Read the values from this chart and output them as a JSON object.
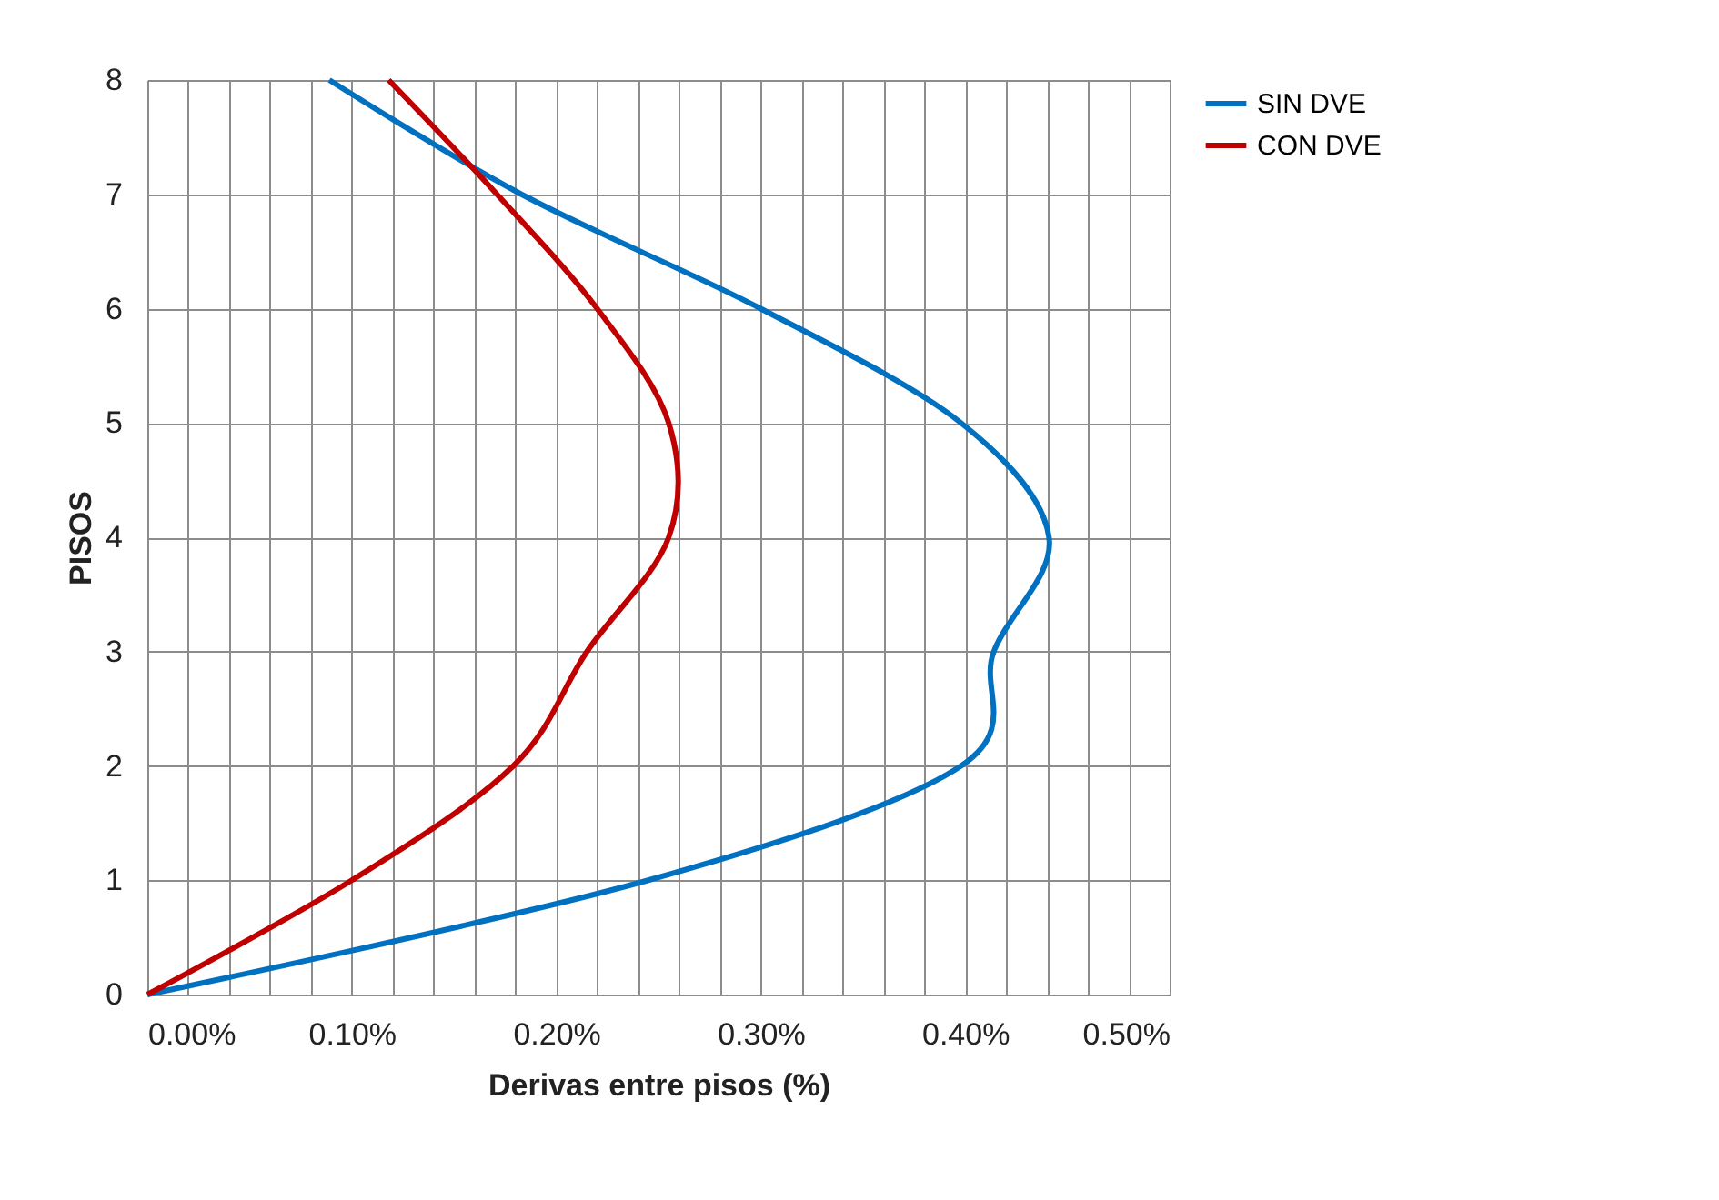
{
  "chart_data": {
    "type": "line",
    "xlabel": "Derivas entre pisos (%)",
    "ylabel": "PISOS",
    "xlim": [
      0,
      0.5
    ],
    "ylim": [
      0,
      8
    ],
    "xticks": [
      {
        "value": 0,
        "label": "0.00%"
      },
      {
        "value": 0.02,
        "label": null
      },
      {
        "value": 0.04,
        "label": null
      },
      {
        "value": 0.06,
        "label": null
      },
      {
        "value": 0.08,
        "label": null
      },
      {
        "value": 0.1,
        "label": "0.10%"
      },
      {
        "value": 0.12,
        "label": null
      },
      {
        "value": 0.14,
        "label": null
      },
      {
        "value": 0.16,
        "label": null
      },
      {
        "value": 0.18,
        "label": null
      },
      {
        "value": 0.2,
        "label": "0.20%"
      },
      {
        "value": 0.22,
        "label": null
      },
      {
        "value": 0.24,
        "label": null
      },
      {
        "value": 0.26,
        "label": null
      },
      {
        "value": 0.28,
        "label": null
      },
      {
        "value": 0.3,
        "label": "0.30%"
      },
      {
        "value": 0.32,
        "label": null
      },
      {
        "value": 0.34,
        "label": null
      },
      {
        "value": 0.36,
        "label": null
      },
      {
        "value": 0.38,
        "label": null
      },
      {
        "value": 0.4,
        "label": "0.40%"
      },
      {
        "value": 0.42,
        "label": null
      },
      {
        "value": 0.44,
        "label": null
      },
      {
        "value": 0.46,
        "label": null
      },
      {
        "value": 0.48,
        "label": null
      },
      {
        "value": 0.5,
        "label": "0.50%"
      }
    ],
    "yticks": [
      0,
      1,
      2,
      3,
      4,
      5,
      6,
      7,
      8
    ],
    "grid": true,
    "legend": "right",
    "marker": "none",
    "line_style": "solid",
    "series": [
      {
        "name": "SIN  DVE",
        "color": "#0070c0",
        "x": [
          0,
          0.245,
          0.398,
          0.414,
          0.441,
          0.398,
          0.3,
          0.183,
          0.089
        ],
        "values": [
          0,
          1,
          2,
          3,
          4,
          5,
          6,
          7,
          8
        ]
      },
      {
        "name": "CON  DVE",
        "color": "#c00000",
        "x": [
          0,
          0.1,
          0.179,
          0.215,
          0.255,
          0.255,
          0.22,
          0.171,
          0.118
        ],
        "values": [
          0,
          1,
          2,
          3,
          4,
          5,
          6,
          7,
          8
        ]
      }
    ]
  }
}
